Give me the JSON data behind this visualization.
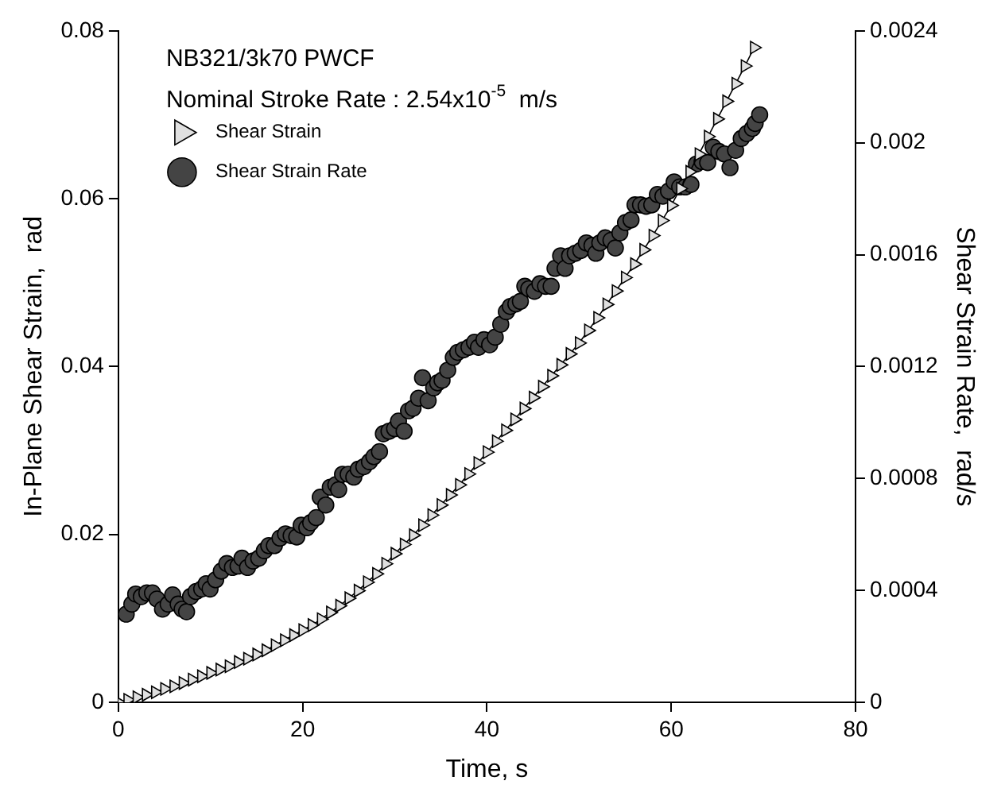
{
  "chart_data": {
    "type": "line",
    "xlabel": "Time, s",
    "ylabel": "In-Plane Shear Strain,  rad",
    "y2label": "Shear Strain Rate,  rad/s",
    "annotations": [
      "NB321/3k70 PWCF",
      "Nominal Stroke Rate : 2.54x10$^{-5}$  m/s"
    ],
    "xlim": [
      0,
      80
    ],
    "xticks": [
      0,
      20,
      40,
      60,
      80
    ],
    "ylim": [
      0,
      0.08
    ],
    "yticks": [
      0,
      0.02,
      0.04,
      0.06,
      0.08
    ],
    "y2lim": [
      0,
      0.0024
    ],
    "y2ticks": [
      0,
      0.0004,
      0.0008,
      0.0012,
      0.0016,
      0.002,
      0.0024
    ],
    "grid": false,
    "legend": "top left",
    "series": [
      {
        "name": "Shear Strain",
        "marker": "triangle",
        "color": "#e0e0e0",
        "x": [
          0,
          1,
          2,
          3,
          4,
          5,
          6,
          7,
          8,
          9,
          10,
          11,
          12,
          13,
          14,
          15,
          16,
          17,
          18,
          19,
          20,
          21,
          22,
          23,
          24,
          25,
          26,
          27,
          28,
          29,
          30,
          31,
          32,
          33,
          34,
          35,
          36,
          37,
          38,
          39,
          40,
          41,
          42,
          43,
          44,
          45,
          46,
          47,
          48,
          49,
          50,
          51,
          52,
          53,
          54,
          55,
          56,
          57,
          58,
          59,
          60,
          61,
          62,
          63,
          64,
          65,
          66,
          67,
          68,
          69
        ],
        "values": [
          0,
          0.0003,
          0.0006,
          0.0009,
          0.0012,
          0.0016,
          0.0019,
          0.0023,
          0.0027,
          0.0031,
          0.0035,
          0.0039,
          0.0043,
          0.0048,
          0.0052,
          0.0057,
          0.0062,
          0.0068,
          0.0074,
          0.008,
          0.0086,
          0.0092,
          0.0099,
          0.0107,
          0.0115,
          0.0124,
          0.0133,
          0.0143,
          0.0153,
          0.0165,
          0.0177,
          0.0188,
          0.0199,
          0.0211,
          0.0223,
          0.0235,
          0.0247,
          0.0259,
          0.0272,
          0.0285,
          0.0298,
          0.0311,
          0.0324,
          0.0337,
          0.035,
          0.0363,
          0.0376,
          0.0389,
          0.0402,
          0.0415,
          0.0428,
          0.0443,
          0.0458,
          0.0474,
          0.049,
          0.0506,
          0.0522,
          0.0539,
          0.0556,
          0.0574,
          0.0592,
          0.0612,
          0.0632,
          0.0653,
          0.0674,
          0.0695,
          0.0716,
          0.0737,
          0.0758,
          0.078
        ]
      },
      {
        "name": "Shear Strain Rate",
        "type": "scatter",
        "marker": "circle",
        "axis": "y2",
        "color": "#444444",
        "x": [
          0.85,
          1.46,
          1.88,
          2.49,
          3.09,
          3.7,
          4.19,
          4.79,
          5.4,
          5.89,
          6.49,
          6.92,
          7.4,
          7.83,
          8.43,
          9.04,
          9.53,
          9.95,
          10.56,
          11.17,
          11.77,
          12.38,
          12.99,
          13.41,
          14.02,
          14.62,
          15.23,
          15.84,
          16.32,
          16.93,
          17.54,
          18.14,
          18.75,
          19.36,
          19.84,
          20.45,
          20.87,
          21.48,
          21.91,
          22.51,
          23,
          23.6,
          23.91,
          24.33,
          24.94,
          25.55,
          26.03,
          26.64,
          27.25,
          27.73,
          28.34,
          28.76,
          29.37,
          29.98,
          30.4,
          31.01,
          31.49,
          31.98,
          32.58,
          33.01,
          33.62,
          34.22,
          34.65,
          35.13,
          35.74,
          36.35,
          36.83,
          37.44,
          38.05,
          38.65,
          39.08,
          39.68,
          40.29,
          40.9,
          41.5,
          42.11,
          42.54,
          43.14,
          43.63,
          44.11,
          44.54,
          45.15,
          45.75,
          46.36,
          46.97,
          47.39,
          48,
          48.48,
          48.97,
          49.58,
          50.18,
          50.79,
          51.4,
          51.82,
          52.25,
          52.85,
          53.46,
          53.94,
          54.43,
          55.04,
          55.64,
          56.07,
          56.67,
          57.28,
          57.89,
          58.5,
          59.1,
          59.71,
          60.32,
          60.92,
          61.53,
          62.14,
          62.74,
          63.35,
          63.96,
          64.56,
          65.17,
          65.78,
          66.38,
          66.99,
          67.6,
          68.2,
          68.81,
          69.11,
          69.6
        ],
        "values": [
          0.000315,
          0.000351,
          0.000387,
          0.000378,
          0.000391,
          0.000391,
          0.000369,
          0.000333,
          0.000351,
          0.000384,
          0.000351,
          0.000333,
          0.000324,
          0.000378,
          0.000396,
          0.000405,
          0.000424,
          0.000405,
          0.000438,
          0.000469,
          0.000496,
          0.000482,
          0.000487,
          0.000515,
          0.000482,
          0.000505,
          0.000515,
          0.000542,
          0.00056,
          0.00056,
          0.000587,
          0.000602,
          0.000596,
          0.000591,
          0.000633,
          0.000624,
          0.000642,
          0.00066,
          0.000733,
          0.000705,
          0.000769,
          0.000778,
          0.00076,
          0.000815,
          0.000815,
          0.000805,
          0.000833,
          0.000842,
          0.00086,
          0.000878,
          0.000896,
          0.00096,
          0.000969,
          0.000978,
          0.001005,
          0.000969,
          0.001042,
          0.001051,
          0.001087,
          0.00116,
          0.001078,
          0.001124,
          0.001142,
          0.001151,
          0.001187,
          0.001233,
          0.001251,
          0.00126,
          0.001269,
          0.001287,
          0.001269,
          0.001296,
          0.001278,
          0.001305,
          0.001351,
          0.001396,
          0.001415,
          0.001424,
          0.001433,
          0.001487,
          0.001478,
          0.001469,
          0.001496,
          0.001487,
          0.001487,
          0.001551,
          0.001596,
          0.001551,
          0.001596,
          0.001605,
          0.001615,
          0.001642,
          0.001633,
          0.001605,
          0.001642,
          0.00166,
          0.001651,
          0.001624,
          0.001678,
          0.001715,
          0.001724,
          0.001778,
          0.001778,
          0.001773,
          0.001778,
          0.001815,
          0.001809,
          0.001827,
          0.00186,
          0.001842,
          0.001842,
          0.001851,
          0.001924,
          0.001933,
          0.001929,
          0.001984,
          0.001969,
          0.00196,
          0.001911,
          0.001973,
          0.002015,
          0.002033,
          0.002051,
          0.002069,
          0.0021
        ]
      }
    ]
  }
}
